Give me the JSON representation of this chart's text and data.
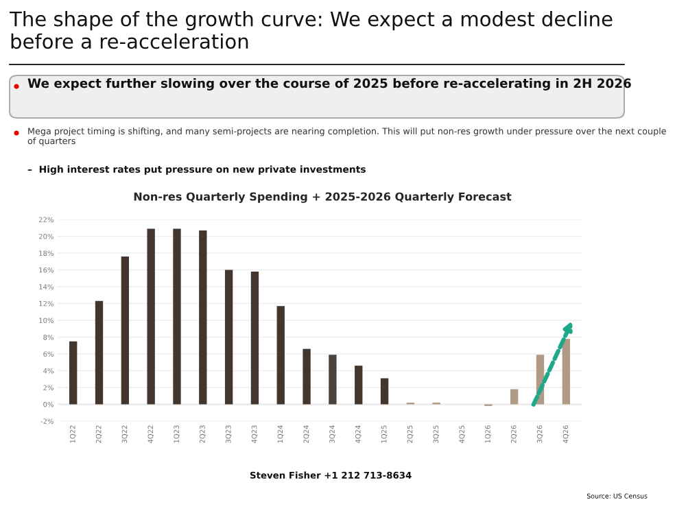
{
  "chart_data": {
    "type": "bar",
    "title": "Non-res Quarterly Spending + 2025-2026 Quarterly Forecast",
    "annotations": [
      "The shape of the growth curve: We expect a modest decline before a re-acceleration",
      "We expect further slowing over the course of 2025 before re-accelerating in 2H 2026",
      "Mega project timing is shifting, and many semi-projects are nearing completion. This will put non-res growth under pressure over the next couple of quarters",
      "–  High interest rates put pressure on new private investments",
      "Steven Fisher +1 212 713-8634",
      "Source: US Census"
    ],
    "categories": [
      "1Q22",
      "2Q22",
      "3Q22",
      "4Q22",
      "1Q23",
      "2Q23",
      "3Q23",
      "4Q23",
      "1Q24",
      "2Q24",
      "3Q24",
      "4Q24",
      "1Q25",
      "2Q25",
      "3Q25",
      "4Q25",
      "1Q26",
      "2Q26",
      "3Q26",
      "4Q26"
    ],
    "values": [
      7.5,
      12.3,
      17.6,
      20.9,
      20.9,
      20.7,
      16.0,
      15.8,
      11.7,
      6.6,
      5.9,
      4.6,
      3.1,
      0.2,
      0.2,
      0.0,
      -0.2,
      1.8,
      5.9,
      7.8
    ],
    "colors": [
      "#45352b",
      "#45352b",
      "#45352b",
      "#45352b",
      "#45352b",
      "#45352b",
      "#45352b",
      "#45352b",
      "#45352b",
      "#45352b",
      "#4e4239",
      "#45352b",
      "#45352b",
      "#b89a80",
      "#b89a80",
      "#b89a80",
      "#b89a80",
      "#b89a80",
      "#b89a80",
      "#b89a80"
    ],
    "ylim": [
      -2,
      22
    ],
    "yticks": [
      {
        "value": -2,
        "label": "-2%"
      },
      {
        "value": 0,
        "label": "0%"
      },
      {
        "value": 2,
        "label": "2%"
      },
      {
        "value": 4,
        "label": "4%"
      },
      {
        "value": 6,
        "label": "6%"
      },
      {
        "value": 8,
        "label": "8%"
      },
      {
        "value": 10,
        "label": "10%"
      },
      {
        "value": 12,
        "label": "12%"
      },
      {
        "value": 14,
        "label": "14%"
      },
      {
        "value": 16,
        "label": "16%"
      },
      {
        "value": 18,
        "label": "18%"
      },
      {
        "value": 20,
        "label": "20%"
      },
      {
        "value": 22,
        "label": "22%"
      }
    ],
    "grid": "y"
  }
}
